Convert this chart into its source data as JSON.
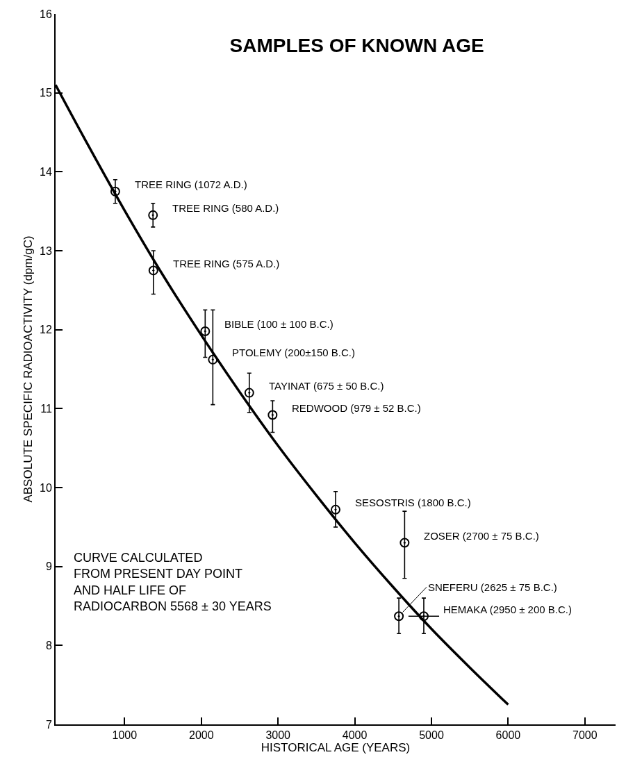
{
  "chart_data": {
    "type": "scatter",
    "title": "SAMPLES OF KNOWN AGE",
    "xlabel": "HISTORICAL AGE (YEARS)",
    "ylabel": "ABSOLUTE SPECIFIC RADIOACTIVITY (dpm/gC)",
    "xlim": [
      100,
      7400
    ],
    "xticks": [
      1000,
      2000,
      3000,
      4000,
      5000,
      6000,
      7000
    ],
    "ylim": [
      7,
      16
    ],
    "yticks": [
      7,
      8,
      9,
      10,
      11,
      12,
      13,
      14,
      15,
      16
    ],
    "marker": "circle",
    "series": [
      {
        "color": "#000000",
        "x": [
          878,
          1370,
          1375,
          2050,
          2150,
          2625,
          2929,
          3750,
          4650,
          4575,
          4900
        ],
        "values": [
          13.75,
          13.45,
          12.75,
          11.98,
          11.62,
          11.2,
          10.92,
          9.72,
          9.3,
          8.37,
          8.37
        ],
        "errors": [
          [
            13.6,
            13.9
          ],
          [
            13.3,
            13.6
          ],
          [
            12.45,
            13.0
          ],
          [
            11.65,
            12.25
          ],
          [
            11.05,
            12.25
          ],
          [
            10.95,
            11.45
          ],
          [
            10.7,
            11.1
          ],
          [
            9.5,
            9.95
          ],
          [
            8.85,
            9.7
          ],
          [
            8.15,
            8.6
          ],
          [
            8.15,
            8.6
          ]
        ],
        "xerrors": [
          null,
          null,
          null,
          null,
          null,
          null,
          null,
          null,
          null,
          null,
          200
        ]
      },
      {
        "type": "line",
        "color": "#000000",
        "marker": "none",
        "x": [
          100,
          500,
          1000,
          1500,
          2000,
          2500,
          3000,
          3500,
          4000,
          4500,
          5000,
          5500,
          6000
        ],
        "values": [
          15.1,
          14.38,
          13.51,
          12.69,
          11.93,
          11.21,
          10.53,
          9.9,
          9.3,
          8.74,
          8.21,
          7.72,
          7.25
        ]
      }
    ],
    "annotations": [
      {
        "text": "TREE RING (1072 A.D.)",
        "x": 878,
        "y": 13.75
      },
      {
        "text": "TREE RING (580 A.D.)",
        "x": 1370,
        "y": 13.45
      },
      {
        "text": "TREE RING (575 A.D.)",
        "x": 1375,
        "y": 12.75
      },
      {
        "text": "BIBLE (100 ± 100 B.C.)",
        "x": 2050,
        "y": 11.98
      },
      {
        "text": "PTOLEMY (200±150 B.C.)",
        "x": 2150,
        "y": 11.62
      },
      {
        "text": "TAYINAT (675 ± 50 B.C.)",
        "x": 2625,
        "y": 11.2
      },
      {
        "text": "REDWOOD (979 ± 52 B.C.)",
        "x": 2929,
        "y": 10.92
      },
      {
        "text": "SESOSTRIS (1800 B.C.)",
        "x": 3750,
        "y": 9.72
      },
      {
        "text": "ZOSER (2700 ± 75 B.C.)",
        "x": 4650,
        "y": 9.3
      },
      {
        "text": "SNEFERU (2625 ± 75 B.C.)",
        "x": 4575,
        "y": 8.37
      },
      {
        "text": "HEMAKA (2950 ± 200 B.C.)",
        "x": 4900,
        "y": 8.37
      },
      "CURVE CALCULATED\nFROM PRESENT DAY POINT\nAND HALF LIFE OF\nRADIOCARBON 5568 ± 30 YEARS"
    ]
  }
}
